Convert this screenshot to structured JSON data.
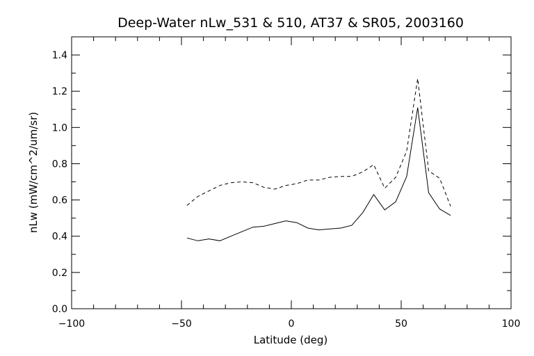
{
  "chart_data": {
    "type": "line",
    "title": "Deep-Water nLw_531 & 510, AT37 & SR05, 2003160",
    "xlabel": "Latitude (deg)",
    "ylabel": "nLw (mW/cm^2/um/sr)",
    "xlim": [
      -100,
      100
    ],
    "ylim": [
      0.0,
      1.5
    ],
    "x_ticks": [
      -100,
      -50,
      0,
      50,
      100
    ],
    "x_tick_labels": [
      "−100",
      "−50",
      "0",
      "50",
      "100"
    ],
    "y_ticks": [
      0.0,
      0.2,
      0.4,
      0.6,
      0.8,
      1.0,
      1.2,
      1.4
    ],
    "y_tick_labels": [
      "0.0",
      "0.2",
      "0.4",
      "0.6",
      "0.8",
      "1.0",
      "1.2",
      "1.4"
    ],
    "grid": false,
    "series": [
      {
        "line_style": "solid",
        "color": "#000000",
        "x": [
          -47.5,
          -42.5,
          -37.5,
          -32.5,
          -27.5,
          -22.5,
          -17.5,
          -12.5,
          -7.5,
          -2.5,
          2.5,
          7.5,
          12.5,
          17.5,
          22.5,
          27.5,
          32.5,
          37.5,
          42.5,
          47.5,
          52.5,
          57.5,
          62.5,
          67.5,
          72.5
        ],
        "y": [
          0.39,
          0.375,
          0.385,
          0.375,
          0.4,
          0.425,
          0.45,
          0.455,
          0.47,
          0.485,
          0.475,
          0.445,
          0.435,
          0.44,
          0.445,
          0.46,
          0.53,
          0.63,
          0.545,
          0.59,
          0.73,
          1.11,
          0.64,
          0.55,
          0.515
        ]
      },
      {
        "line_style": "dashed",
        "color": "#000000",
        "x": [
          -47.5,
          -42.5,
          -37.5,
          -32.5,
          -27.5,
          -22.5,
          -17.5,
          -12.5,
          -7.5,
          -2.5,
          2.5,
          7.5,
          12.5,
          17.5,
          22.5,
          27.5,
          32.5,
          37.5,
          42.5,
          47.5,
          52.5,
          57.5,
          62.5,
          67.5,
          72.5
        ],
        "y": [
          0.57,
          0.62,
          0.65,
          0.68,
          0.695,
          0.7,
          0.695,
          0.67,
          0.66,
          0.68,
          0.69,
          0.71,
          0.71,
          0.725,
          0.73,
          0.73,
          0.755,
          0.795,
          0.665,
          0.725,
          0.87,
          1.27,
          0.76,
          0.72,
          0.565
        ]
      }
    ]
  }
}
